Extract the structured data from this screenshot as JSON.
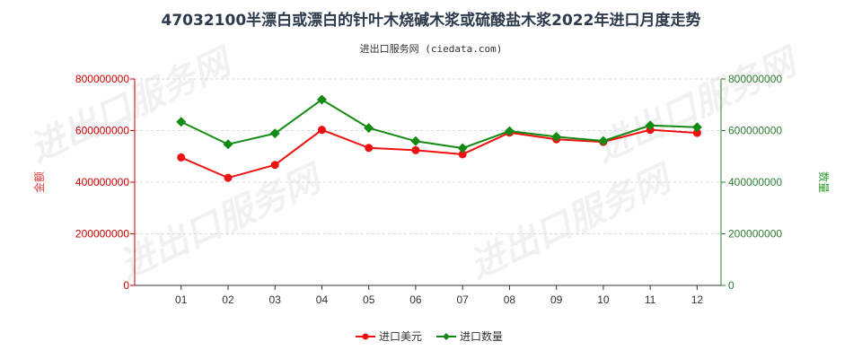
{
  "title": "47032100半漂白或漂白的针叶木烧碱木浆或硫酸盐木浆2022年进口月度走势",
  "subtitle": "进出口服务网 (ciedata.com)",
  "watermark": "进出口服务网",
  "colors": {
    "amount": "#ee1111",
    "quantity": "#138a13"
  },
  "chart_data": {
    "type": "line",
    "categories": [
      "01",
      "02",
      "03",
      "04",
      "05",
      "06",
      "07",
      "08",
      "09",
      "10",
      "11",
      "12"
    ],
    "left_axis": {
      "label": "金额",
      "ticks": [
        "0",
        "200000000",
        "400000000",
        "600000000",
        "800000000"
      ],
      "range": [
        0,
        800000000
      ]
    },
    "right_axis": {
      "label": "数量",
      "ticks": [
        "0",
        "200000000",
        "400000000",
        "600000000",
        "800000000"
      ],
      "range": [
        0,
        800000000
      ]
    },
    "series": [
      {
        "name": "进口美元",
        "axis": "left",
        "marker": "circle",
        "values": [
          496000000,
          417000000,
          467000000,
          603000000,
          533000000,
          524000000,
          508000000,
          592000000,
          566000000,
          556000000,
          603000000,
          591000000
        ]
      },
      {
        "name": "进口数量",
        "axis": "right",
        "marker": "diamond",
        "values": [
          634000000,
          547000000,
          589000000,
          720000000,
          610000000,
          559000000,
          532000000,
          598000000,
          576000000,
          560000000,
          620000000,
          613000000
        ]
      }
    ],
    "grid": true,
    "legend_position": "bottom-center"
  }
}
